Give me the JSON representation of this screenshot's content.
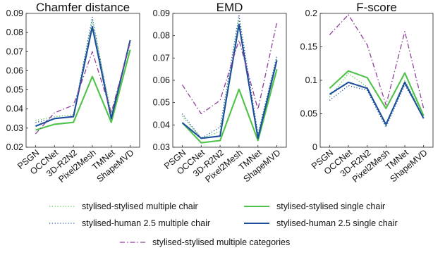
{
  "chart_data": [
    {
      "type": "line",
      "title": "Chamfer distance",
      "categories": [
        "PSGN",
        "OCCNet",
        "3D-R2N2",
        "Pixel2Mesh",
        "TMNet",
        "ShapeMVD"
      ],
      "ylim": [
        0.02,
        0.09
      ],
      "yticks": [
        "0.02",
        "0.03",
        "0.04",
        "0.05",
        "0.06",
        "0.07",
        "0.08",
        "0.09"
      ],
      "grid": false,
      "series": [
        {
          "name": "stylised-stylised multiple chair",
          "values": [
            0.034,
            0.036,
            0.037,
            0.086,
            0.038,
            0.074
          ]
        },
        {
          "name": "stylised-human 2.5 multiple chair",
          "values": [
            0.033,
            0.035,
            0.036,
            0.088,
            0.035,
            0.076
          ]
        },
        {
          "name": "stylised-stylised single chair",
          "values": [
            0.029,
            0.032,
            0.033,
            0.057,
            0.033,
            0.071
          ]
        },
        {
          "name": "stylised-human 2.5 single chair",
          "values": [
            0.031,
            0.035,
            0.036,
            0.083,
            0.035,
            0.076
          ]
        },
        {
          "name": "stylised-stylised multiple categories",
          "values": [
            0.027,
            0.038,
            0.042,
            0.07,
            0.038,
            0.075
          ]
        }
      ]
    },
    {
      "type": "line",
      "title": "EMD",
      "categories": [
        "PSGN",
        "OCCNet",
        "3D-R2N2",
        "Pixel2Mesh",
        "TMNet",
        "ShapeMVD"
      ],
      "ylim": [
        0.03,
        0.09
      ],
      "yticks": [
        "0.03",
        "0.04",
        "0.05",
        "0.06",
        "0.07",
        "0.08",
        "0.09"
      ],
      "grid": false,
      "series": [
        {
          "name": "stylised-stylised multiple chair",
          "values": [
            0.044,
            0.034,
            0.037,
            0.087,
            0.035,
            0.07
          ]
        },
        {
          "name": "stylised-human 2.5 multiple chair",
          "values": [
            0.045,
            0.034,
            0.039,
            0.089,
            0.036,
            0.071
          ]
        },
        {
          "name": "stylised-stylised single chair",
          "values": [
            0.041,
            0.032,
            0.033,
            0.056,
            0.033,
            0.065
          ]
        },
        {
          "name": "stylised-human 2.5 single chair",
          "values": [
            0.041,
            0.034,
            0.035,
            0.085,
            0.034,
            0.069
          ]
        },
        {
          "name": "stylised-stylised multiple categories",
          "values": [
            0.058,
            0.045,
            0.051,
            0.078,
            0.047,
            0.086
          ]
        }
      ]
    },
    {
      "type": "line",
      "title": "F-score",
      "categories": [
        "PSGN",
        "OCCNet",
        "3D-R2N2",
        "Pixel2Mesh",
        "TMNet",
        "ShapeMVD"
      ],
      "ylim": [
        0.0,
        0.2
      ],
      "yticks": [
        "0",
        "0.05",
        "0.1",
        "0.15",
        "0.2"
      ],
      "grid": false,
      "series": [
        {
          "name": "stylised-stylised multiple chair",
          "values": [
            0.075,
            0.11,
            0.09,
            0.032,
            0.1,
            0.047
          ]
        },
        {
          "name": "stylised-human 2.5 multiple chair",
          "values": [
            0.07,
            0.092,
            0.085,
            0.03,
            0.093,
            0.045
          ]
        },
        {
          "name": "stylised-stylised single chair",
          "values": [
            0.088,
            0.114,
            0.104,
            0.058,
            0.111,
            0.047
          ]
        },
        {
          "name": "stylised-human 2.5 single chair",
          "values": [
            0.079,
            0.097,
            0.088,
            0.034,
            0.097,
            0.043
          ]
        },
        {
          "name": "stylised-stylised multiple categories",
          "values": [
            0.168,
            0.198,
            0.153,
            0.063,
            0.173,
            0.058
          ]
        }
      ]
    }
  ],
  "legend": [
    {
      "label": "stylised-stylised multiple chair",
      "color": "#4fc24a",
      "dash": "dotted",
      "width": "thin"
    },
    {
      "label": "stylised-human 2.5 multiple chair",
      "color": "#1b4f9c",
      "dash": "dotted",
      "width": "thin"
    },
    {
      "label": "stylised-stylised single chair",
      "color": "#4fc24a",
      "dash": "solid",
      "width": "thick"
    },
    {
      "label": "stylised-human 2.5 single chair",
      "color": "#1b4f9c",
      "dash": "solid",
      "width": "thick"
    },
    {
      "label": "stylised-stylised multiple categories",
      "color": "#8e3f9a",
      "dash": "dashdot",
      "width": "thin"
    }
  ]
}
